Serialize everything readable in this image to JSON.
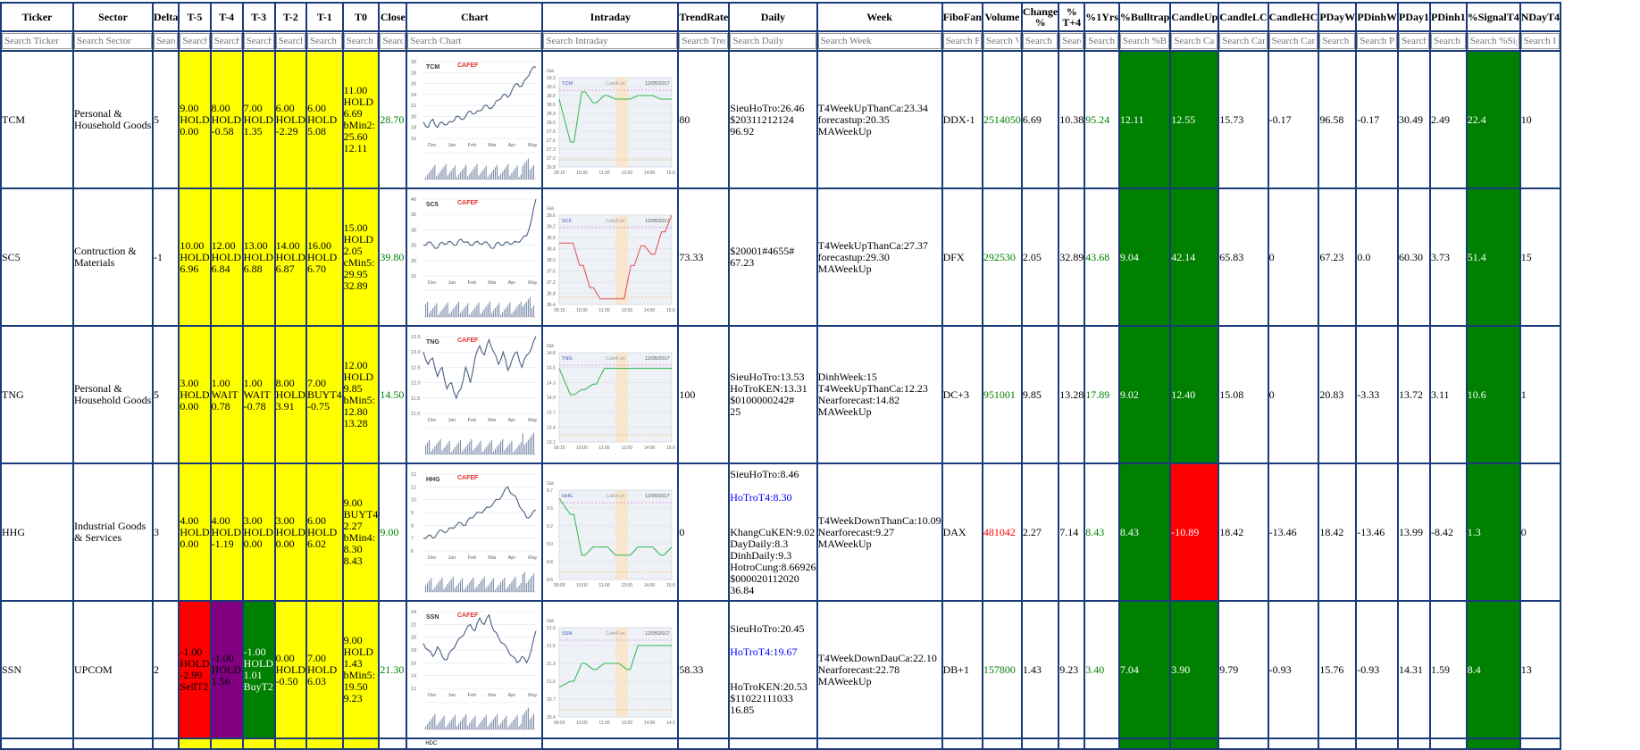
{
  "columns": [
    "Ticker",
    "Sector",
    "Delta",
    "T-5",
    "T-4",
    "T-3",
    "T-2",
    "T-1",
    "T0",
    "Close",
    "Chart",
    "Intraday",
    "TrendRate",
    "Daily",
    "Week",
    "FiboFan",
    "Volume",
    "Change %",
    "% T+4",
    "%1Yrs",
    "%Bulltrap",
    "CandleUp",
    "CandleLC",
    "CandleHC",
    "PDayW",
    "PDinhW",
    "PDay1",
    "PDinh1",
    "%SignalT4",
    "NDayT4"
  ],
  "search_placeholders": [
    "Search Ticker",
    "Search Sector",
    "Searc",
    "Search",
    "Search",
    "Search",
    "Search",
    "Search",
    "Search",
    "Search",
    "Search Chart",
    "Search Intraday",
    "Search Trer",
    "Search Daily",
    "Search Week",
    "Search F",
    "Search V",
    "Search C",
    "Searc",
    "Search",
    "Search %Bu",
    "Search Car",
    "Search Can",
    "Search Cand",
    "Search",
    "Search P",
    "Search",
    "Search",
    "Search %Sig",
    "Search I"
  ],
  "rows": [
    {
      "ticker": "TCM",
      "sector": "Personal & Household Goods",
      "delta": "5",
      "t5": [
        "9.00",
        "HOLD",
        "0.00"
      ],
      "t4": [
        "8.00",
        "HOLD",
        "-0.58"
      ],
      "t3": [
        "7.00",
        "HOLD",
        "1.35"
      ],
      "t2": [
        "6.00",
        "HOLD",
        "-2.29"
      ],
      "t1": [
        "6.00",
        "HOLD",
        "5.08"
      ],
      "t0": [
        "11.00",
        "HOLD",
        "6.69",
        "bMin2:",
        "25.60",
        "12.11"
      ],
      "close": "28.70",
      "chart": {
        "ticker": "TCM",
        "yticks": [
          "30",
          "28",
          "26",
          "24",
          "22",
          "20",
          "18",
          "16"
        ],
        "months": [
          "Dec",
          "Jan",
          "Feb",
          "Mar",
          "Apr",
          "May"
        ],
        "prices": [
          19,
          18,
          19.5,
          18,
          19,
          18.5,
          19,
          20,
          19.5,
          20,
          21,
          20.5,
          21,
          22,
          21.5,
          22,
          23,
          24,
          23.5,
          25,
          26,
          25.5,
          27,
          28.5,
          29
        ]
      },
      "intraday": {
        "ticker": "TCM",
        "date": "12/05/2017",
        "yticks": [
          "29.3",
          "29.0",
          "28.8",
          "28.5",
          "28.3",
          "28.0",
          "27.8",
          "27.5",
          "27.3",
          "27.0",
          "26.8"
        ],
        "times": [
          "09:15",
          "10:30",
          "11:30",
          "13:00",
          "14:00",
          "15:00"
        ],
        "prices": [
          28.7,
          27.5,
          28.9,
          28.6,
          28.8,
          28.7,
          28.7,
          28.8,
          28.8,
          28.7,
          28.7
        ]
      },
      "trend": "80",
      "daily": [
        {
          "t": "SieuHoTro:26.46",
          "c": ""
        },
        {
          "t": "$20311212124",
          "c": ""
        },
        {
          "t": "96.92",
          "c": ""
        }
      ],
      "week": [
        "T4WeekUpThanCa:23.34",
        "forecastup:20.35",
        "MAWeekUp"
      ],
      "fibo": "DDX-1",
      "volume": "2514050",
      "change": "6.69",
      "tp4": "10.38",
      "y1": "95.24",
      "bulltrap": "12.11",
      "candleup": "12.55",
      "candlelc": "15.73",
      "candlehc": "-0.17",
      "pdayw": "96.58",
      "pdinhw": "-0.17",
      "pday1": "30.49",
      "pdinh1": "2.49",
      "signal": "22.4",
      "nday": "10"
    },
    {
      "ticker": "SC5",
      "sector": "Contruction & Materials",
      "delta": "-1",
      "t5": [
        "10.00",
        "HOLD",
        "6.96"
      ],
      "t4": [
        "12.00",
        "HOLD",
        "6.84"
      ],
      "t3": [
        "13.00",
        "HOLD",
        "6.88"
      ],
      "t2": [
        "14.00",
        "HOLD",
        "6.87"
      ],
      "t1": [
        "16.00",
        "HOLD",
        "6.70"
      ],
      "t0": [
        "15.00",
        "HOLD",
        "2.05",
        "cMin5:",
        "29.95",
        "32.89"
      ],
      "close": "39.80",
      "chart": {
        "ticker": "SC5",
        "yticks": [
          "40",
          "35",
          "30",
          "25",
          "20",
          "15"
        ],
        "months": [
          "Dec",
          "Jan",
          "Feb",
          "Mar",
          "Apr",
          "May"
        ],
        "prices": [
          25,
          26,
          25,
          24,
          26,
          25.5,
          26,
          25,
          27,
          26,
          25,
          26,
          25.5,
          26,
          25,
          24,
          26,
          25,
          26,
          25.5,
          26,
          27,
          28,
          33,
          40
        ]
      },
      "intraday": {
        "ticker": "SC5",
        "date": "12/05/2017",
        "yticks": [
          "39.6",
          "39.2",
          "38.8",
          "38.4",
          "38.0",
          "37.6",
          "37.2",
          "36.8",
          "36.4"
        ],
        "times": [
          "09:15",
          "10:30",
          "11:30",
          "13:00",
          "14:00",
          "15:00"
        ],
        "prices": [
          38.6,
          38.6,
          37.8,
          37.0,
          36.6,
          36.6,
          36.6,
          37.8,
          38.5,
          38.2,
          39.0,
          39.8
        ]
      },
      "trend": "73.33",
      "daily": [
        {
          "t": "$20001#4655#",
          "c": ""
        },
        {
          "t": "67.23",
          "c": ""
        }
      ],
      "week": [
        "T4WeekUpThanCa:27.37",
        "forecastup:29.30",
        "MAWeekUp"
      ],
      "fibo": "DFX",
      "volume": "292530",
      "change": "2.05",
      "tp4": "32.89",
      "y1": "43.68",
      "bulltrap": "9.04",
      "candleup": "42.14",
      "candlelc": "65.83",
      "candlehc": "0",
      "pdayw": "67.23",
      "pdinhw": "0.0",
      "pday1": "60.30",
      "pdinh1": "3.73",
      "signal": "51.4",
      "nday": "15"
    },
    {
      "ticker": "TNG",
      "sector": "Personal & Household Goods",
      "delta": "5",
      "t5": [
        "3.00",
        "HOLD",
        "0.00"
      ],
      "t4": [
        "1.00",
        "WAIT",
        "0.78"
      ],
      "t3": [
        "1.00",
        "WAIT",
        "-0.78"
      ],
      "t2": [
        "8.00",
        "HOLD",
        "3.91"
      ],
      "t1": [
        "7.00",
        "BUYT4",
        "-0.75"
      ],
      "t0": [
        "12.00",
        "HOLD",
        "9.85",
        "bMin5:",
        "12.80",
        "13.28"
      ],
      "close": "14.50",
      "chart": {
        "ticker": "TNG",
        "yticks": [
          "13.5",
          "13.0",
          "12.5",
          "12.0",
          "11.5",
          "11.0"
        ],
        "months": [
          "Dec",
          "Jan",
          "Feb",
          "Mar",
          "Apr",
          "May"
        ],
        "prices": [
          13,
          12.6,
          12.8,
          12.2,
          12.5,
          11.8,
          12,
          11.5,
          11.8,
          12.5,
          12,
          12.8,
          13.2,
          12.9,
          13.4,
          13,
          12.6,
          13,
          12.4,
          12.8,
          13,
          12.5,
          12.9,
          13.1,
          14.5
        ]
      },
      "intraday": {
        "ticker": "TNG",
        "date": "12/05/2017",
        "yticks": [
          "14.8",
          "14.5",
          "14.3",
          "14.0",
          "13.7",
          "13.4",
          "13.1"
        ],
        "times": [
          "09:15",
          "10:00",
          "11:00",
          "13:00",
          "14:00",
          "15:00"
        ],
        "prices": [
          14.5,
          14.0,
          14.1,
          14.2,
          14.5,
          14.5,
          14.5,
          14.5,
          14.5,
          14.5,
          14.5
        ]
      },
      "trend": "100",
      "daily": [
        {
          "t": "SieuHoTro:13.53",
          "c": ""
        },
        {
          "t": "HoTroKEN:13.31",
          "c": ""
        },
        {
          "t": "$0100000242#",
          "c": ""
        },
        {
          "t": "25",
          "c": ""
        }
      ],
      "week": [
        "DinhWeek:15",
        "T4WeekUpThanCa:12.23",
        "Nearforecast:14.82",
        "MAWeekUp"
      ],
      "fibo": "DC+3",
      "volume": "951001",
      "change": "9.85",
      "tp4": "13.28",
      "y1": "17.89",
      "bulltrap": "9.02",
      "candleup": "12.40",
      "candlelc": "15.08",
      "candlehc": "0",
      "pdayw": "20.83",
      "pdinhw": "-3.33",
      "pday1": "13.72",
      "pdinh1": "3.11",
      "signal": "10.6",
      "nday": "1"
    },
    {
      "ticker": "HHG",
      "sector": "Industrial Goods & Services",
      "delta": "3",
      "t5": [
        "4.00",
        "HOLD",
        "0.00"
      ],
      "t4": [
        "4.00",
        "HOLD",
        "-1.19"
      ],
      "t3": [
        "3.00",
        "HOLD",
        "0.00"
      ],
      "t2": [
        "3.00",
        "HOLD",
        "0.00"
      ],
      "t1": [
        "6.00",
        "HOLD",
        "6.02"
      ],
      "t0": [
        "9.00",
        "BUYT4",
        "2.27",
        "bMin4:",
        "8.30",
        "8.43"
      ],
      "close": "9.00",
      "chart": {
        "ticker": "HHG",
        "yticks": [
          "12",
          "11",
          "10",
          "9",
          "8",
          "7",
          "6"
        ],
        "months": [
          "Dec",
          "Jan",
          "Feb",
          "Mar",
          "Apr",
          "May"
        ],
        "prices": [
          7,
          7.2,
          7,
          7.4,
          7.6,
          7.5,
          7.8,
          8,
          8.2,
          8,
          8.6,
          8.8,
          9,
          9.2,
          9.4,
          9.8,
          10,
          10.5,
          11,
          10.4,
          10,
          9.2,
          8.6,
          8.8,
          9.2
        ]
      },
      "intraday": {
        "ticker": "HHG",
        "date": "12/05/2017",
        "yticks": [
          "9.7",
          "9.5",
          "9.2",
          "9.0",
          "8.8",
          "8.6"
        ],
        "times": [
          "09:00",
          "10:00",
          "11:00",
          "13:00",
          "14:00",
          "15:00"
        ],
        "prices": [
          9.6,
          9.4,
          8.9,
          9.0,
          9.0,
          8.9,
          8.9,
          9.0,
          9.0,
          8.9,
          9.0
        ]
      },
      "trend": "0",
      "daily": [
        {
          "t": "SieuHoTro:8.46",
          "c": ""
        },
        {
          "t": "",
          "c": ""
        },
        {
          "t": "HoTroT4:8.30",
          "c": "blue"
        },
        {
          "t": "",
          "c": ""
        },
        {
          "t": "",
          "c": ""
        },
        {
          "t": "KhangCuKEN:9.02",
          "c": ""
        },
        {
          "t": "DayDaily:8.3",
          "c": ""
        },
        {
          "t": "DinhDaily:9.3",
          "c": ""
        },
        {
          "t": "HotroCung:8.66926",
          "c": ""
        },
        {
          "t": "$000020112020",
          "c": ""
        },
        {
          "t": "36.84",
          "c": ""
        }
      ],
      "week": [
        "T4WeekDownThanCa:10.09",
        "Nearforecast:9.27",
        "MAWeekUp"
      ],
      "fibo": "DAX",
      "volume": "481042",
      "change": "2.27",
      "tp4": "7.14",
      "y1": "8.43",
      "bulltrap": "8.43",
      "candleup": "-10.89",
      "candlelc": "18.42",
      "candlehc": "-13.46",
      "pdayw": "18.42",
      "pdinhw": "-13.46",
      "pday1": "13.99",
      "pdinh1": "-8.42",
      "signal": "1.3",
      "nday": "0"
    },
    {
      "ticker": "SSN",
      "sector": "UPCOM",
      "delta": "2",
      "t5": [
        "-1.00",
        "HOLD",
        "-2.99",
        "SellT2"
      ],
      "t4": [
        "-1.00",
        "HOLD",
        "1.56"
      ],
      "t3": [
        "-1.00",
        "HOLD",
        "1.01",
        "BuyT2"
      ],
      "t2": [
        "0.00",
        "HOLD",
        "-0.50"
      ],
      "t1": [
        "7.00",
        "HOLD",
        "6.03"
      ],
      "t0": [
        "9.00",
        "HOLD",
        "1.43",
        "bMin5:",
        "19.50",
        "9.23"
      ],
      "close": "21.30",
      "chart": {
        "ticker": "SSN",
        "yticks": [
          "24",
          "22",
          "20",
          "18",
          "16",
          "14",
          "12"
        ],
        "months": [
          "Dec",
          "Jan",
          "Feb",
          "Mar",
          "Apr",
          "May"
        ],
        "prices": [
          19,
          18,
          17,
          18.5,
          17,
          16.5,
          18,
          19,
          20,
          21,
          22,
          21,
          23,
          22,
          23.5,
          21,
          20,
          19,
          18,
          17,
          16,
          17,
          16,
          18,
          21
        ]
      },
      "intraday": {
        "ticker": "SSN",
        "date": "12/05/2017",
        "yticks": [
          "21.9",
          "21.6",
          "21.3",
          "21.0",
          "20.7",
          "20.4"
        ],
        "times": [
          "09:00",
          "10:00",
          "11:30",
          "13:00",
          "14:00",
          "14:15"
        ],
        "prices": [
          20.9,
          21.0,
          21.3,
          21.2,
          21.3,
          21.3,
          21.2,
          21.6,
          21.6,
          21.6,
          21.6
        ]
      },
      "trend": "58.33",
      "daily": [
        {
          "t": "SieuHoTro:20.45",
          "c": ""
        },
        {
          "t": "",
          "c": ""
        },
        {
          "t": "HoTroT4:19.67",
          "c": "blue"
        },
        {
          "t": "",
          "c": ""
        },
        {
          "t": "",
          "c": ""
        },
        {
          "t": "HoTroKEN:20.53",
          "c": ""
        },
        {
          "t": "$11022111033",
          "c": ""
        },
        {
          "t": "16.85",
          "c": ""
        }
      ],
      "week": [
        "T4WeekDownDauCa:22.10",
        "Nearforecast:22.78",
        "MAWeekUp"
      ],
      "fibo": "DB+1",
      "volume": "157800",
      "change": "1.43",
      "tp4": "9.23",
      "y1": "3.40",
      "bulltrap": "7.04",
      "candleup": "3.90",
      "candlelc": "9.79",
      "candlehc": "-0.93",
      "pdayw": "15.76",
      "pdinhw": "-0.93",
      "pday1": "14.31",
      "pdinh1": "1.59",
      "signal": "8.4",
      "nday": "13"
    }
  ],
  "partial_row": {
    "ticker": "HDC",
    "chart_ticker": "HDC"
  },
  "colors": {
    "border": "#1a3a7a",
    "yellow": "#ffff00",
    "green": "#008000",
    "red": "#ff0000",
    "purple": "#800080",
    "chart_line": "#4a5f80",
    "intraday_line": "#2fb84a"
  },
  "chart_brand": "CAFEF",
  "intraday_brand": "CafeF.vn",
  "intraday_unit": "Giá"
}
